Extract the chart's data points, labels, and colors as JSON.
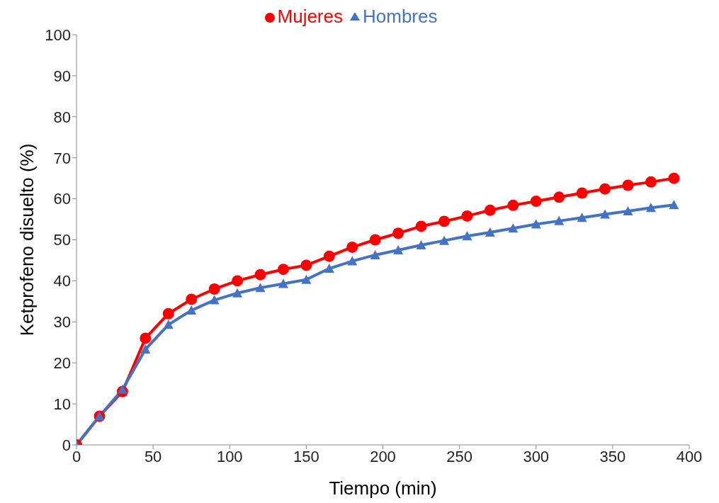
{
  "chart_data": {
    "type": "line",
    "xlabel": "Tiempo (min)",
    "ylabel": "Ketprofeno disuelto (%)",
    "x": [
      0,
      15,
      30,
      45,
      60,
      75,
      90,
      105,
      120,
      135,
      150,
      165,
      180,
      195,
      210,
      225,
      240,
      255,
      270,
      285,
      300,
      315,
      330,
      345,
      360,
      375,
      390
    ],
    "series": [
      {
        "name": "Mujeres",
        "color": "#ff0000",
        "marker": "circle",
        "values": [
          0,
          7,
          13,
          26,
          32,
          35.5,
          38,
          40,
          41.5,
          42.8,
          43.8,
          46,
          48.2,
          50,
          51.6,
          53.3,
          54.5,
          55.8,
          57.2,
          58.4,
          59.4,
          60.4,
          61.4,
          62.4,
          63.3,
          64.1,
          65
        ]
      },
      {
        "name": "Hombres",
        "color": "#4472c4",
        "marker": "triangle",
        "values": [
          0,
          7,
          13.5,
          23.3,
          29.3,
          32.8,
          35.3,
          37,
          38.3,
          39.3,
          40.3,
          43,
          44.8,
          46.3,
          47.5,
          48.7,
          49.8,
          50.9,
          51.8,
          52.8,
          53.8,
          54.6,
          55.4,
          56.2,
          57,
          57.8,
          58.5
        ]
      }
    ],
    "xlim": [
      0,
      400
    ],
    "xticks": [
      0,
      50,
      100,
      150,
      200,
      250,
      300,
      350,
      400
    ],
    "ylim": [
      0,
      100
    ],
    "yticks": [
      0,
      10,
      20,
      30,
      40,
      50,
      60,
      70,
      80,
      90,
      100
    ],
    "grid": false,
    "legend": "top",
    "line_style": "solid"
  }
}
